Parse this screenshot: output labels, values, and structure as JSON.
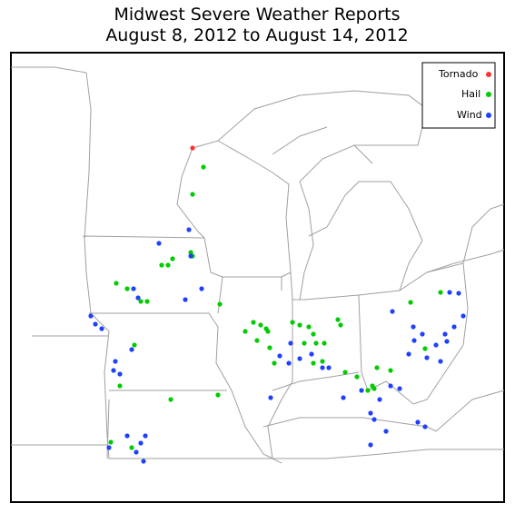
{
  "header": {
    "title": "Midwest Severe Weather Reports",
    "subtitle": "August 8, 2012 to August 14, 2012"
  },
  "legend": {
    "items": [
      {
        "label": "Tornado",
        "color": "#ff3030"
      },
      {
        "label": "Hail",
        "color": "#00cc00"
      },
      {
        "label": "Wind",
        "color": "#2040ff"
      }
    ]
  }
}
